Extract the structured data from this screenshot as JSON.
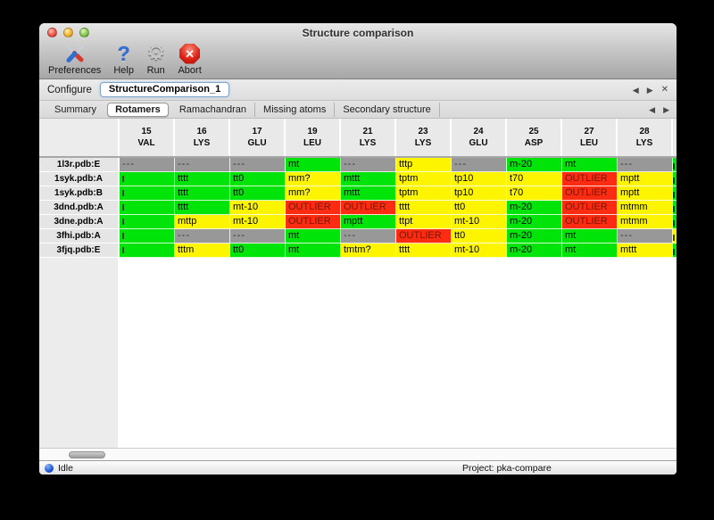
{
  "window": {
    "title": "Structure comparison"
  },
  "toolbar": {
    "buttons": [
      {
        "name": "preferences",
        "label": "Preferences"
      },
      {
        "name": "help",
        "label": "Help"
      },
      {
        "name": "run",
        "label": "Run"
      },
      {
        "name": "abort",
        "label": "Abort"
      }
    ]
  },
  "configure": {
    "label": "Configure",
    "tab_label": "StructureComparison_1"
  },
  "nav": {
    "left": "◀",
    "right": "▶",
    "close": "✕"
  },
  "tabs": {
    "items": [
      "Summary",
      "Rotamers",
      "Ramachandran",
      "Missing atoms",
      "Secondary structure"
    ],
    "active": "Rotamers"
  },
  "table": {
    "columns": [
      {
        "num": "15",
        "res": "VAL"
      },
      {
        "num": "16",
        "res": "LYS"
      },
      {
        "num": "17",
        "res": "GLU"
      },
      {
        "num": "19",
        "res": "LEU"
      },
      {
        "num": "21",
        "res": "LYS"
      },
      {
        "num": "23",
        "res": "LYS"
      },
      {
        "num": "24",
        "res": "GLU"
      },
      {
        "num": "25",
        "res": "ASP"
      },
      {
        "num": "27",
        "res": "LEU"
      },
      {
        "num": "28",
        "res": "LYS"
      }
    ],
    "rows": [
      {
        "label": "1l3r.pdb:E",
        "overflow": "green",
        "cells": [
          {
            "t": "---",
            "c": "gray"
          },
          {
            "t": "---",
            "c": "gray"
          },
          {
            "t": "---",
            "c": "gray"
          },
          {
            "t": "mt",
            "c": "green"
          },
          {
            "t": "---",
            "c": "gray"
          },
          {
            "t": "tttp",
            "c": "yellow"
          },
          {
            "t": "---",
            "c": "gray"
          },
          {
            "t": "m-20",
            "c": "green"
          },
          {
            "t": "mt",
            "c": "green"
          },
          {
            "t": "---",
            "c": "gray"
          }
        ]
      },
      {
        "label": "1syk.pdb:A",
        "overflow": "green",
        "cells": [
          {
            "t": "",
            "c": "green"
          },
          {
            "t": "tttt",
            "c": "green"
          },
          {
            "t": "tt0",
            "c": "green"
          },
          {
            "t": "mm?",
            "c": "yellow"
          },
          {
            "t": "mttt",
            "c": "green"
          },
          {
            "t": "tptm",
            "c": "yellow"
          },
          {
            "t": "tp10",
            "c": "yellow"
          },
          {
            "t": "t70",
            "c": "yellow"
          },
          {
            "t": "OUTLIER",
            "c": "red"
          },
          {
            "t": "mptt",
            "c": "yellow"
          }
        ]
      },
      {
        "label": "1syk.pdb:B",
        "overflow": "green",
        "cells": [
          {
            "t": "",
            "c": "green"
          },
          {
            "t": "tttt",
            "c": "green"
          },
          {
            "t": "tt0",
            "c": "green"
          },
          {
            "t": "mm?",
            "c": "yellow"
          },
          {
            "t": "mttt",
            "c": "green"
          },
          {
            "t": "tptm",
            "c": "yellow"
          },
          {
            "t": "tp10",
            "c": "yellow"
          },
          {
            "t": "t70",
            "c": "yellow"
          },
          {
            "t": "OUTLIER",
            "c": "red"
          },
          {
            "t": "mptt",
            "c": "yellow"
          }
        ]
      },
      {
        "label": "3dnd.pdb:A",
        "overflow": "green",
        "cells": [
          {
            "t": "",
            "c": "green"
          },
          {
            "t": "tttt",
            "c": "green"
          },
          {
            "t": "mt-10",
            "c": "yellow"
          },
          {
            "t": "OUTLIER",
            "c": "red"
          },
          {
            "t": "OUTLIER",
            "c": "red"
          },
          {
            "t": "tttt",
            "c": "yellow"
          },
          {
            "t": "tt0",
            "c": "yellow"
          },
          {
            "t": "m-20",
            "c": "green"
          },
          {
            "t": "OUTLIER",
            "c": "red"
          },
          {
            "t": "mtmm",
            "c": "yellow"
          }
        ]
      },
      {
        "label": "3dne.pdb:A",
        "overflow": "green",
        "cells": [
          {
            "t": "",
            "c": "green"
          },
          {
            "t": "mttp",
            "c": "yellow"
          },
          {
            "t": "mt-10",
            "c": "yellow"
          },
          {
            "t": "OUTLIER",
            "c": "red"
          },
          {
            "t": "mptt",
            "c": "green"
          },
          {
            "t": "ttpt",
            "c": "yellow"
          },
          {
            "t": "mt-10",
            "c": "yellow"
          },
          {
            "t": "m-20",
            "c": "green"
          },
          {
            "t": "OUTLIER",
            "c": "red"
          },
          {
            "t": "mtmm",
            "c": "yellow"
          }
        ]
      },
      {
        "label": "3fhi.pdb:A",
        "overflow": "yellow",
        "cells": [
          {
            "t": "",
            "c": "green"
          },
          {
            "t": "---",
            "c": "gray"
          },
          {
            "t": "---",
            "c": "gray"
          },
          {
            "t": "mt",
            "c": "green"
          },
          {
            "t": "---",
            "c": "gray"
          },
          {
            "t": "OUTLIER",
            "c": "red"
          },
          {
            "t": "tt0",
            "c": "yellow"
          },
          {
            "t": "m-20",
            "c": "green"
          },
          {
            "t": "mt",
            "c": "green"
          },
          {
            "t": "---",
            "c": "gray"
          }
        ]
      },
      {
        "label": "3fjq.pdb:E",
        "overflow": "green",
        "cells": [
          {
            "t": "",
            "c": "green"
          },
          {
            "t": "tttm",
            "c": "yellow"
          },
          {
            "t": "tt0",
            "c": "green"
          },
          {
            "t": "mt",
            "c": "green"
          },
          {
            "t": "tmtm?",
            "c": "yellow"
          },
          {
            "t": "tttt",
            "c": "yellow"
          },
          {
            "t": "mt-10",
            "c": "yellow"
          },
          {
            "t": "m-20",
            "c": "green"
          },
          {
            "t": "mt",
            "c": "green"
          },
          {
            "t": "mttt",
            "c": "yellow"
          }
        ]
      }
    ]
  },
  "statusbar": {
    "status": "Idle",
    "project": "Project: pka-compare"
  },
  "colors": {
    "green": "#00e409",
    "yellow": "#fdf400",
    "red": "#fb2c12",
    "gray": "#989898",
    "focus_blue": "#7fa3c6"
  }
}
